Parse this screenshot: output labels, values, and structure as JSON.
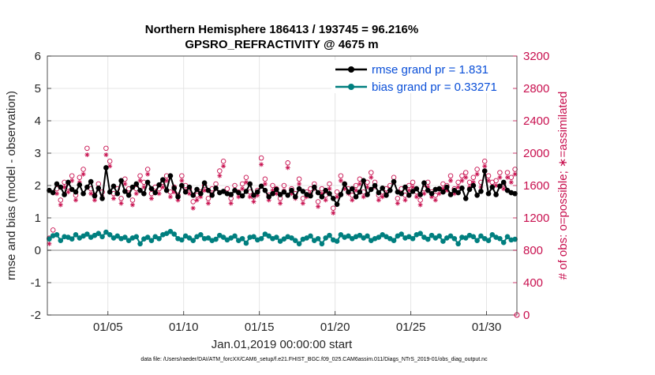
{
  "chart_data": {
    "type": "line",
    "title_line1": "Northern Hemisphere 186413 / 193745 = 96.216%",
    "title_line2": "GPSRO_REFRACTIVITY @ 4675 m",
    "xlabel": "Jan.01,2019 00:00:00 start",
    "ylabel": "rmse and bias (model - observation)",
    "ylabel_right": "# of obs: o=possible; ∗=assimilated",
    "footnote": "data file: /Users/raeder/DAI/ATM_forcXX/CAM6_setup/f.e21.FHIST_BGC.f09_025.CAM6assim.011/Diags_NTrS_2019-01/obs_diag_output.nc",
    "xlim": [
      1.0,
      32.0
    ],
    "ylim": [
      -2,
      6
    ],
    "ylim_right": [
      0,
      3200
    ],
    "x_ticks": [
      5,
      10,
      15,
      20,
      25,
      30
    ],
    "x_tick_labels": [
      "01/05",
      "01/10",
      "01/15",
      "01/20",
      "01/25",
      "01/30"
    ],
    "y_ticks": [
      -2,
      -1,
      0,
      1,
      2,
      3,
      4,
      5,
      6
    ],
    "y_tick_labels": [
      "-2",
      "-1",
      "0",
      "1",
      "2",
      "3",
      "4",
      "5",
      "6"
    ],
    "y_right_ticks": [
      0,
      400,
      800,
      1200,
      1600,
      2000,
      2400,
      2800,
      3200
    ],
    "y_right_tick_labels": [
      "0",
      "400",
      "800",
      "1200",
      "1600",
      "2000",
      "2400",
      "2800",
      "3200"
    ],
    "grid": true,
    "legend_position": "top-right",
    "zero_line": 0,
    "series": [
      {
        "name": "rmse grand pr = 1.831",
        "color": "#000000",
        "x": [
          1.125,
          1.375,
          1.625,
          1.875,
          2.125,
          2.375,
          2.625,
          2.875,
          3.125,
          3.375,
          3.625,
          3.875,
          4.125,
          4.375,
          4.625,
          4.875,
          5.125,
          5.375,
          5.625,
          5.875,
          6.125,
          6.375,
          6.625,
          6.875,
          7.125,
          7.375,
          7.625,
          7.875,
          8.125,
          8.375,
          8.625,
          8.875,
          9.125,
          9.375,
          9.625,
          9.875,
          10.125,
          10.375,
          10.625,
          10.875,
          11.125,
          11.375,
          11.625,
          11.875,
          12.125,
          12.375,
          12.625,
          12.875,
          13.125,
          13.375,
          13.625,
          13.875,
          14.125,
          14.375,
          14.625,
          14.875,
          15.125,
          15.375,
          15.625,
          15.875,
          16.125,
          16.375,
          16.625,
          16.875,
          17.125,
          17.375,
          17.625,
          17.875,
          18.125,
          18.375,
          18.625,
          18.875,
          19.125,
          19.375,
          19.625,
          19.875,
          20.125,
          20.375,
          20.625,
          20.875,
          21.125,
          21.375,
          21.625,
          21.875,
          22.125,
          22.375,
          22.625,
          22.875,
          23.125,
          23.375,
          23.625,
          23.875,
          24.125,
          24.375,
          24.625,
          24.875,
          25.125,
          25.375,
          25.625,
          25.875,
          26.125,
          26.375,
          26.625,
          26.875,
          27.125,
          27.375,
          27.625,
          27.875,
          28.125,
          28.375,
          28.625,
          28.875,
          29.125,
          29.375,
          29.625,
          29.875,
          30.125,
          30.375,
          30.625,
          30.875,
          31.125,
          31.375,
          31.625,
          31.875
        ],
        "values": [
          1.85,
          1.78,
          2.05,
          1.95,
          1.72,
          2.1,
          1.88,
          1.8,
          2.02,
          1.75,
          1.95,
          2.12,
          1.68,
          1.92,
          1.6,
          2.55,
          1.8,
          1.98,
          1.75,
          2.15,
          1.82,
          1.7,
          1.95,
          2.05,
          1.85,
          1.75,
          2.1,
          1.9,
          1.78,
          2.02,
          2.18,
          1.85,
          2.3,
          1.92,
          1.65,
          2.0,
          1.8,
          1.95,
          1.7,
          1.88,
          1.75,
          2.08,
          1.85,
          1.7,
          1.92,
          1.78,
          1.82,
          1.75,
          1.72,
          1.85,
          1.78,
          1.68,
          1.82,
          2.05,
          1.7,
          1.8,
          1.98,
          1.85,
          1.65,
          1.75,
          1.88,
          1.72,
          1.8,
          1.7,
          1.85,
          1.65,
          1.9,
          1.82,
          1.72,
          1.68,
          1.95,
          1.78,
          1.65,
          1.85,
          1.75,
          1.6,
          1.42,
          1.72,
          2.05,
          1.8,
          1.9,
          1.65,
          1.8,
          2.15,
          1.72,
          1.88,
          2.0,
          1.78,
          1.92,
          1.7,
          1.85,
          2.12,
          1.8,
          1.75,
          1.95,
          1.7,
          1.82,
          1.9,
          1.72,
          2.08,
          1.85,
          1.75,
          1.88,
          1.9,
          1.8,
          1.95,
          1.72,
          1.85,
          1.78,
          1.92,
          1.6,
          1.88,
          2.0,
          1.7,
          1.82,
          2.45,
          1.75,
          1.95,
          1.72,
          1.98,
          2.1,
          1.85,
          1.78,
          1.75
        ]
      },
      {
        "name": "bias grand pr = 0.33271",
        "color": "#007f7f",
        "x": [
          1.125,
          1.375,
          1.625,
          1.875,
          2.125,
          2.375,
          2.625,
          2.875,
          3.125,
          3.375,
          3.625,
          3.875,
          4.125,
          4.375,
          4.625,
          4.875,
          5.125,
          5.375,
          5.625,
          5.875,
          6.125,
          6.375,
          6.625,
          6.875,
          7.125,
          7.375,
          7.625,
          7.875,
          8.125,
          8.375,
          8.625,
          8.875,
          9.125,
          9.375,
          9.625,
          9.875,
          10.125,
          10.375,
          10.625,
          10.875,
          11.125,
          11.375,
          11.625,
          11.875,
          12.125,
          12.375,
          12.625,
          12.875,
          13.125,
          13.375,
          13.625,
          13.875,
          14.125,
          14.375,
          14.625,
          14.875,
          15.125,
          15.375,
          15.625,
          15.875,
          16.125,
          16.375,
          16.625,
          16.875,
          17.125,
          17.375,
          17.625,
          17.875,
          18.125,
          18.375,
          18.625,
          18.875,
          19.125,
          19.375,
          19.625,
          19.875,
          20.125,
          20.375,
          20.625,
          20.875,
          21.125,
          21.375,
          21.625,
          21.875,
          22.125,
          22.375,
          22.625,
          22.875,
          23.125,
          23.375,
          23.625,
          23.875,
          24.125,
          24.375,
          24.625,
          24.875,
          25.125,
          25.375,
          25.625,
          25.875,
          26.125,
          26.375,
          26.625,
          26.875,
          27.125,
          27.375,
          27.625,
          27.875,
          28.125,
          28.375,
          28.625,
          28.875,
          29.125,
          29.375,
          29.625,
          29.875,
          30.125,
          30.375,
          30.625,
          30.875,
          31.125,
          31.375,
          31.625,
          31.875
        ],
        "values": [
          0.35,
          0.45,
          0.48,
          0.3,
          0.42,
          0.4,
          0.35,
          0.48,
          0.38,
          0.44,
          0.5,
          0.4,
          0.46,
          0.52,
          0.42,
          0.56,
          0.48,
          0.38,
          0.44,
          0.36,
          0.4,
          0.3,
          0.38,
          0.42,
          0.2,
          0.35,
          0.4,
          0.3,
          0.42,
          0.36,
          0.48,
          0.52,
          0.58,
          0.5,
          0.36,
          0.32,
          0.44,
          0.38,
          0.3,
          0.42,
          0.48,
          0.36,
          0.38,
          0.3,
          0.34,
          0.46,
          0.4,
          0.32,
          0.38,
          0.44,
          0.3,
          0.36,
          0.22,
          0.4,
          0.42,
          0.32,
          0.36,
          0.5,
          0.44,
          0.36,
          0.4,
          0.28,
          0.35,
          0.42,
          0.38,
          0.3,
          0.2,
          0.34,
          0.38,
          0.44,
          0.3,
          0.36,
          0.2,
          0.38,
          0.46,
          0.32,
          0.28,
          0.48,
          0.4,
          0.44,
          0.36,
          0.42,
          0.46,
          0.38,
          0.44,
          0.3,
          0.36,
          0.4,
          0.48,
          0.42,
          0.36,
          0.3,
          0.44,
          0.5,
          0.38,
          0.42,
          0.36,
          0.48,
          0.52,
          0.4,
          0.34,
          0.46,
          0.38,
          0.44,
          0.28,
          0.38,
          0.44,
          0.36,
          0.2,
          0.4,
          0.38,
          0.46,
          0.42,
          0.3,
          0.44,
          0.36,
          0.3,
          0.48,
          0.4,
          0.36,
          0.24,
          0.42,
          0.32,
          0.34
        ]
      },
      {
        "name": "# obs possible (o)",
        "color": "#c8104f",
        "axis": "right",
        "x": [
          1.125,
          1.375,
          1.625,
          1.875,
          2.125,
          2.375,
          2.625,
          2.875,
          3.125,
          3.375,
          3.625,
          3.875,
          4.125,
          4.375,
          4.625,
          4.875,
          5.125,
          5.375,
          5.625,
          5.875,
          6.125,
          6.375,
          6.625,
          6.875,
          7.125,
          7.375,
          7.625,
          7.875,
          8.125,
          8.375,
          8.625,
          8.875,
          9.125,
          9.375,
          9.625,
          9.875,
          10.125,
          10.375,
          10.625,
          10.875,
          11.125,
          11.375,
          11.625,
          11.875,
          12.125,
          12.375,
          12.625,
          12.875,
          13.125,
          13.375,
          13.625,
          13.875,
          14.125,
          14.375,
          14.625,
          14.875,
          15.125,
          15.375,
          15.625,
          15.875,
          16.125,
          16.375,
          16.625,
          16.875,
          17.125,
          17.375,
          17.625,
          17.875,
          18.125,
          18.375,
          18.625,
          18.875,
          19.125,
          19.375,
          19.625,
          19.875,
          20.125,
          20.375,
          20.625,
          20.875,
          21.125,
          21.375,
          21.625,
          21.875,
          22.125,
          22.375,
          22.625,
          22.875,
          23.125,
          23.375,
          23.625,
          23.875,
          24.125,
          24.375,
          24.625,
          24.875,
          25.125,
          25.375,
          25.625,
          25.875,
          26.125,
          26.375,
          26.625,
          26.875,
          27.125,
          27.375,
          27.625,
          27.875,
          28.125,
          28.375,
          28.625,
          28.875,
          29.125,
          29.375,
          29.625,
          29.875,
          30.125,
          30.375,
          30.625,
          30.875,
          31.125,
          31.375,
          31.625,
          31.875
        ],
        "values": [
          950,
          1050,
          1560,
          1420,
          1640,
          1580,
          1720,
          1480,
          1700,
          1800,
          2060,
          1560,
          1480,
          1620,
          1520,
          2060,
          1900,
          1500,
          1560,
          1440,
          1680,
          1560,
          1420,
          1560,
          1720,
          1640,
          1800,
          1500,
          1580,
          1560,
          1640,
          1720,
          1520,
          1580,
          1480,
          1720,
          1600,
          1560,
          1400,
          1480,
          1520,
          1600,
          1440,
          1560,
          1620,
          1780,
          1900,
          1560,
          1440,
          1600,
          1520,
          1620,
          1700,
          1520,
          1460,
          1540,
          1940,
          1680,
          1480,
          1600,
          1560,
          1440,
          1600,
          1880,
          1560,
          1500,
          1680,
          1440,
          1520,
          1560,
          1620,
          1400,
          1560,
          1480,
          1620,
          1320,
          1520,
          1720,
          1620,
          1560,
          1480,
          1600,
          1680,
          1520,
          1640,
          1760,
          1640,
          1480,
          1520,
          1560,
          1600,
          1700,
          1440,
          1560,
          1480,
          1600,
          1640,
          1520,
          1420,
          1560,
          1640,
          1520,
          1480,
          1560,
          1620,
          1600,
          1720,
          1560,
          1640,
          1720,
          1760,
          1640,
          1700,
          1800,
          1640,
          1900,
          1720,
          1640,
          1660,
          1760,
          1620,
          1760,
          1700,
          1800
        ]
      },
      {
        "name": "# obs assimilated (∗)",
        "color": "#c8104f",
        "axis": "right",
        "x": [
          1.125,
          1.375,
          1.625,
          1.875,
          2.125,
          2.375,
          2.625,
          2.875,
          3.125,
          3.375,
          3.625,
          3.875,
          4.125,
          4.375,
          4.625,
          4.875,
          5.125,
          5.375,
          5.625,
          5.875,
          6.125,
          6.375,
          6.625,
          6.875,
          7.125,
          7.375,
          7.625,
          7.875,
          8.125,
          8.375,
          8.625,
          8.875,
          9.125,
          9.375,
          9.625,
          9.875,
          10.125,
          10.375,
          10.625,
          10.875,
          11.125,
          11.375,
          11.625,
          11.875,
          12.125,
          12.375,
          12.625,
          12.875,
          13.125,
          13.375,
          13.625,
          13.875,
          14.125,
          14.375,
          14.625,
          14.875,
          15.125,
          15.375,
          15.625,
          15.875,
          16.125,
          16.375,
          16.625,
          16.875,
          17.125,
          17.375,
          17.625,
          17.875,
          18.125,
          18.375,
          18.625,
          18.875,
          19.125,
          19.375,
          19.625,
          19.875,
          20.125,
          20.375,
          20.625,
          20.875,
          21.125,
          21.375,
          21.625,
          21.875,
          22.125,
          22.375,
          22.625,
          22.875,
          23.125,
          23.375,
          23.625,
          23.875,
          24.125,
          24.375,
          24.625,
          24.875,
          25.125,
          25.375,
          25.625,
          25.875,
          26.125,
          26.375,
          26.625,
          26.875,
          27.125,
          27.375,
          27.625,
          27.875,
          28.125,
          28.375,
          28.625,
          28.875,
          29.125,
          29.375,
          29.625,
          29.875,
          30.125,
          30.375,
          30.625,
          30.875,
          31.125,
          31.375,
          31.625,
          31.875
        ],
        "values": [
          880,
          980,
          1500,
          1360,
          1580,
          1520,
          1660,
          1420,
          1640,
          1740,
          1980,
          1500,
          1420,
          1560,
          1460,
          1980,
          1840,
          1440,
          1500,
          1380,
          1620,
          1500,
          1360,
          1500,
          1660,
          1580,
          1740,
          1440,
          1520,
          1500,
          1580,
          1660,
          1460,
          1520,
          1420,
          1660,
          1540,
          1500,
          1320,
          1420,
          1460,
          1540,
          1380,
          1500,
          1560,
          1720,
          1840,
          1500,
          1380,
          1540,
          1460,
          1560,
          1640,
          1460,
          1400,
          1480,
          1860,
          1620,
          1420,
          1540,
          1500,
          1380,
          1540,
          1820,
          1500,
          1440,
          1620,
          1380,
          1460,
          1500,
          1560,
          1340,
          1500,
          1420,
          1560,
          1260,
          1460,
          1660,
          1560,
          1500,
          1420,
          1540,
          1620,
          1460,
          1580,
          1700,
          1580,
          1420,
          1460,
          1500,
          1540,
          1640,
          1380,
          1500,
          1420,
          1540,
          1580,
          1460,
          1360,
          1500,
          1580,
          1460,
          1420,
          1500,
          1560,
          1540,
          1660,
          1500,
          1580,
          1660,
          1700,
          1580,
          1640,
          1740,
          1580,
          1840,
          1660,
          1580,
          1600,
          1700,
          1560,
          1700,
          1640,
          1740
        ]
      }
    ],
    "final_obs_marker": {
      "x": 32.0,
      "value": 0
    }
  }
}
